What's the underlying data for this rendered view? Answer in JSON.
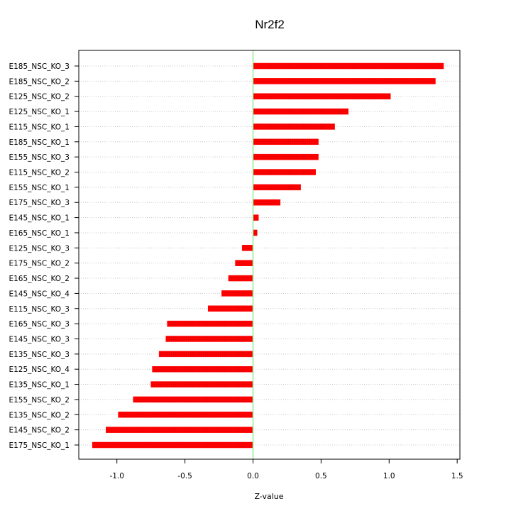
{
  "chart_data": {
    "type": "bar",
    "orientation": "horizontal",
    "title": "Nr2f2",
    "xlabel": "Z-value",
    "ylabel": "",
    "xlim": [
      -1.28,
      1.52
    ],
    "xticks": [
      -1.0,
      -0.5,
      0.0,
      0.5,
      1.0,
      1.5
    ],
    "xtick_labels": [
      "-1.0",
      "-0.5",
      "0.0",
      "0.5",
      "1.0",
      "1.5"
    ],
    "grid": "horizontal dotted",
    "reference_line": 0,
    "categories": [
      "E185_NSC_KO_3",
      "E185_NSC_KO_2",
      "E125_NSC_KO_2",
      "E125_NSC_KO_1",
      "E115_NSC_KO_1",
      "E185_NSC_KO_1",
      "E155_NSC_KO_3",
      "E115_NSC_KO_2",
      "E155_NSC_KO_1",
      "E175_NSC_KO_3",
      "E145_NSC_KO_1",
      "E165_NSC_KO_1",
      "E125_NSC_KO_3",
      "E175_NSC_KO_2",
      "E165_NSC_KO_2",
      "E145_NSC_KO_4",
      "E115_NSC_KO_3",
      "E165_NSC_KO_3",
      "E145_NSC_KO_3",
      "E135_NSC_KO_3",
      "E125_NSC_KO_4",
      "E135_NSC_KO_1",
      "E155_NSC_KO_2",
      "E135_NSC_KO_2",
      "E145_NSC_KO_2",
      "E175_NSC_KO_1"
    ],
    "values": [
      1.4,
      1.34,
      1.01,
      0.7,
      0.6,
      0.48,
      0.48,
      0.46,
      0.35,
      0.2,
      0.04,
      0.03,
      -0.08,
      -0.13,
      -0.18,
      -0.23,
      -0.33,
      -0.63,
      -0.64,
      -0.69,
      -0.74,
      -0.75,
      -0.88,
      -0.99,
      -1.08,
      -1.18
    ],
    "colors": {
      "bar": "#ff0000",
      "bar_edge": "#cc0000",
      "zero_line": "#90ee90",
      "grid": "#c8c8c8",
      "axis": "#000000"
    }
  }
}
